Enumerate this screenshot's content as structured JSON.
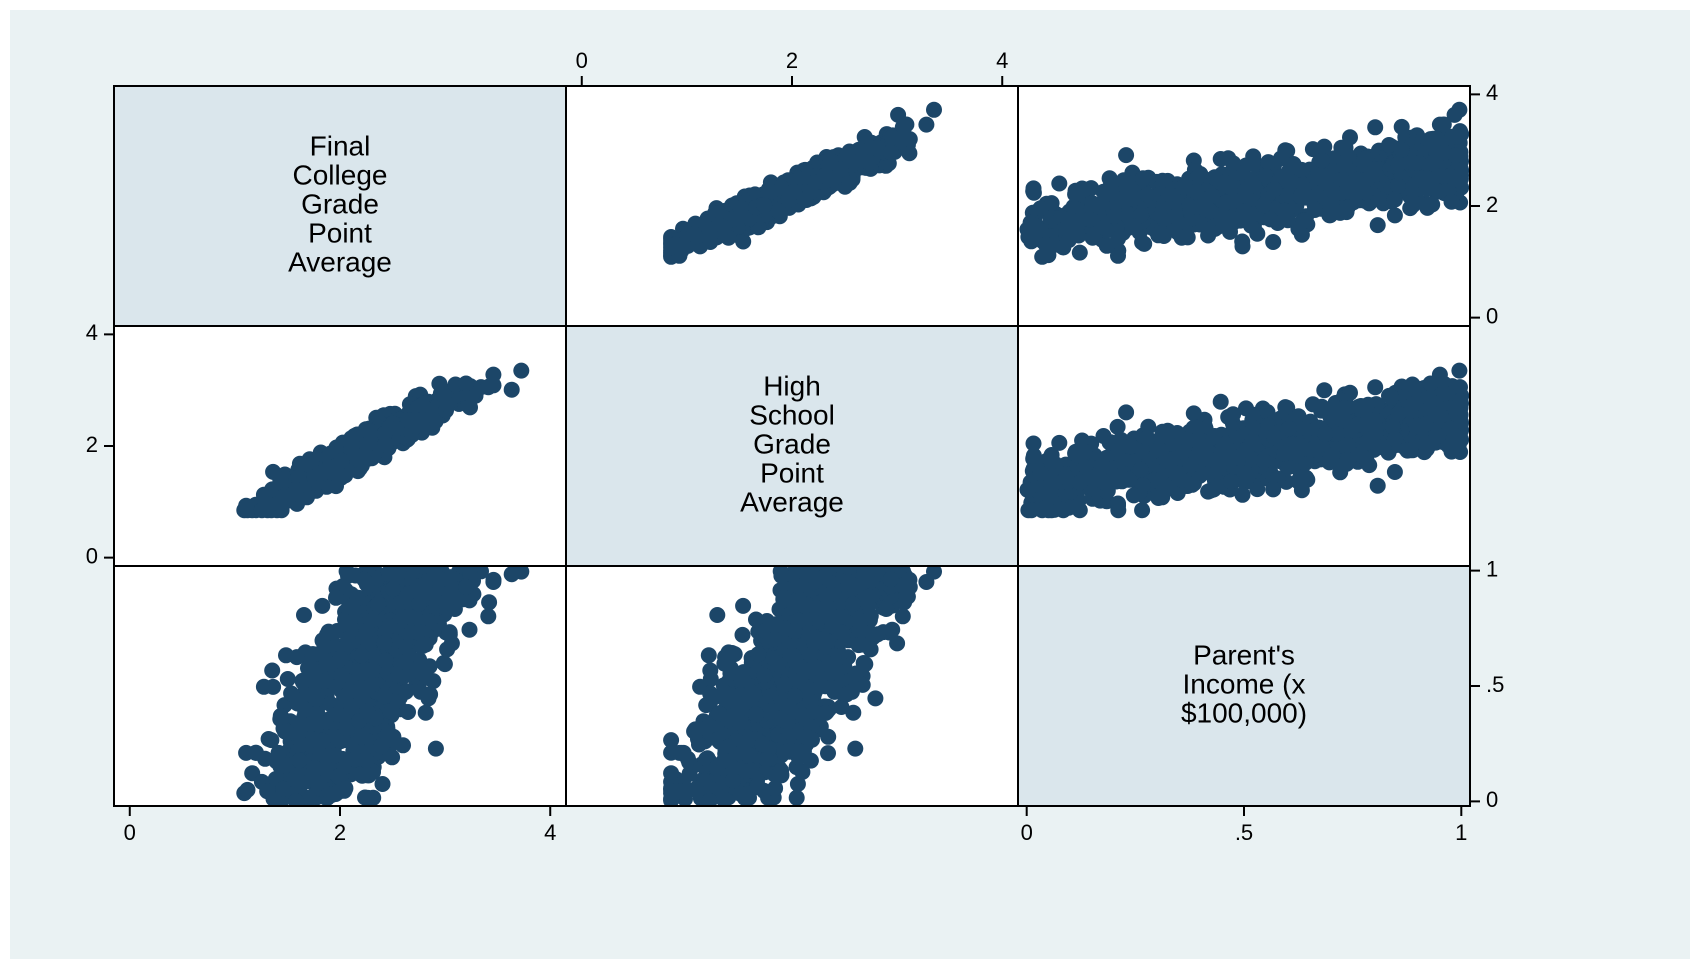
{
  "chart_data": {
    "type": "scatter-matrix",
    "variables": [
      "Final College Grade Point Average",
      "High School Grade Point Average",
      "Parent's Income (x $100,000)"
    ],
    "diagonal_labels": [
      [
        "Final",
        "College",
        "Grade",
        "Point",
        "Average"
      ],
      [
        "High",
        "School",
        "Grade",
        "Point",
        "Average"
      ],
      [
        "Parent's",
        "Income (x",
        "$100,000)"
      ]
    ],
    "axes": {
      "college_gpa": {
        "range": [
          -0.15,
          4.15
        ],
        "ticks": [
          0,
          2,
          4
        ],
        "tick_labels": [
          "0",
          "2",
          "4"
        ]
      },
      "hs_gpa": {
        "range": [
          -0.15,
          4.15
        ],
        "ticks": [
          0,
          2,
          4
        ],
        "tick_labels": [
          "0",
          "2",
          "4"
        ]
      },
      "income": {
        "range": [
          -0.02,
          1.02
        ],
        "ticks": [
          0,
          0.5,
          1
        ],
        "tick_labels": [
          "0",
          ".5",
          "1"
        ]
      }
    },
    "observations": 1000,
    "marker_color": "#1c4668",
    "grid": false,
    "legend": "none"
  },
  "colors": {
    "background": "#eaf2f3",
    "plot_background": "#ffffff",
    "diagonal_fill": "#dae6ec",
    "marker": "#1c4668",
    "frame": "#000000"
  }
}
